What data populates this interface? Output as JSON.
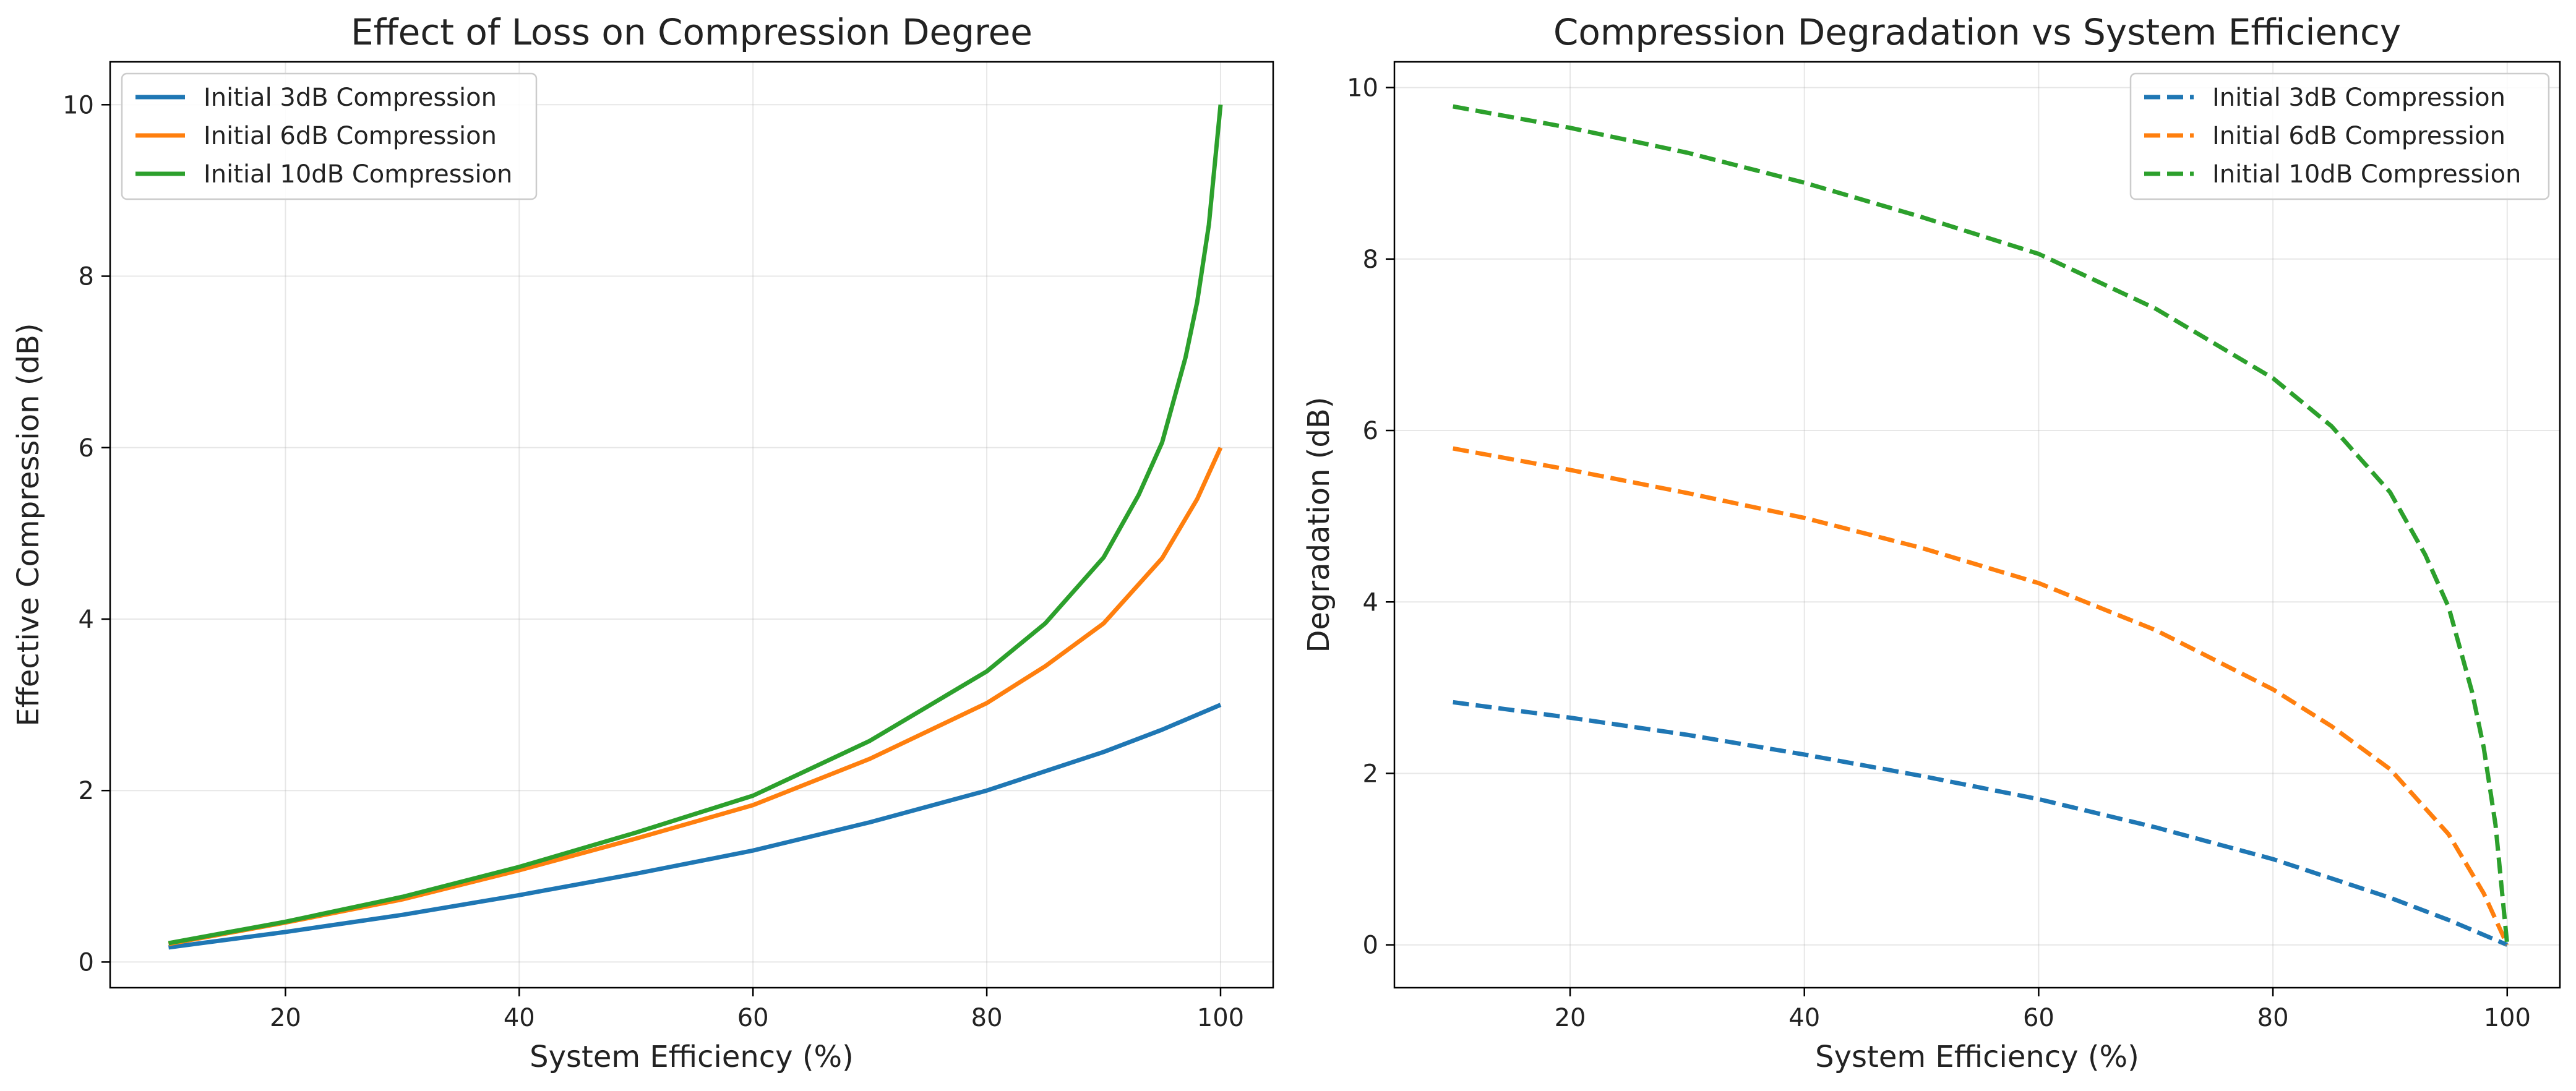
{
  "colors": {
    "series_3db": "#1f77b4",
    "series_6db": "#ff7f0e",
    "series_10db": "#2ca02c"
  },
  "chart_data": [
    {
      "type": "line",
      "title": "Effect of Loss on Compression Degree",
      "xlabel": "System Efficiency (%)",
      "ylabel": "Effective Compression (dB)",
      "xlim": [
        5,
        104.5
      ],
      "ylim": [
        -0.3,
        10.5
      ],
      "xticks": [
        20,
        40,
        60,
        80,
        100
      ],
      "yticks": [
        0,
        2,
        4,
        6,
        8,
        10
      ],
      "grid": true,
      "legend_position": "upper-left",
      "line_style": "solid",
      "series": [
        {
          "name": "Initial 3dB Compression",
          "color_key": "series_3db",
          "x": [
            10,
            20,
            30,
            40,
            50,
            60,
            70,
            80,
            90,
            95,
            100
          ],
          "y": [
            0.17,
            0.35,
            0.55,
            0.78,
            1.03,
            1.3,
            1.63,
            2.0,
            2.45,
            2.71,
            3.0
          ]
        },
        {
          "name": "Initial 6dB Compression",
          "color_key": "series_6db",
          "x": [
            10,
            20,
            30,
            40,
            50,
            60,
            70,
            80,
            85,
            90,
            95,
            98,
            100
          ],
          "y": [
            0.21,
            0.46,
            0.73,
            1.07,
            1.44,
            1.83,
            2.37,
            3.02,
            3.45,
            3.95,
            4.71,
            5.4,
            6.0
          ]
        },
        {
          "name": "Initial 10dB Compression",
          "color_key": "series_10db",
          "x": [
            10,
            20,
            30,
            40,
            50,
            60,
            70,
            80,
            85,
            90,
            93,
            95,
            97,
            98,
            99,
            100
          ],
          "y": [
            0.22,
            0.47,
            0.76,
            1.11,
            1.51,
            1.94,
            2.58,
            3.39,
            3.95,
            4.72,
            5.45,
            6.06,
            7.05,
            7.7,
            8.6,
            10.0
          ]
        }
      ]
    },
    {
      "type": "line",
      "title": "Compression Degradation vs System Efficiency",
      "xlabel": "System Efficiency (%)",
      "ylabel": "Degradation (dB)",
      "xlim": [
        5,
        104.5
      ],
      "ylim": [
        -0.5,
        10.3
      ],
      "xticks": [
        20,
        40,
        60,
        80,
        100
      ],
      "yticks": [
        0,
        2,
        4,
        6,
        8,
        10
      ],
      "grid": true,
      "legend_position": "upper-right",
      "line_style": "dashed",
      "series": [
        {
          "name": "Initial 3dB Compression",
          "color_key": "series_3db",
          "x": [
            10,
            20,
            30,
            40,
            50,
            60,
            70,
            80,
            90,
            95,
            100
          ],
          "y": [
            2.83,
            2.65,
            2.45,
            2.22,
            1.97,
            1.7,
            1.37,
            1.0,
            0.55,
            0.29,
            0.0
          ]
        },
        {
          "name": "Initial 6dB Compression",
          "color_key": "series_6db",
          "x": [
            10,
            20,
            30,
            40,
            50,
            60,
            70,
            80,
            85,
            90,
            95,
            98,
            100
          ],
          "y": [
            5.79,
            5.54,
            5.27,
            4.98,
            4.63,
            4.22,
            3.67,
            2.98,
            2.55,
            2.05,
            1.29,
            0.6,
            0.0
          ]
        },
        {
          "name": "Initial 10dB Compression",
          "color_key": "series_10db",
          "x": [
            10,
            20,
            30,
            40,
            50,
            60,
            70,
            80,
            85,
            90,
            93,
            95,
            97,
            98,
            99,
            100
          ],
          "y": [
            9.78,
            9.53,
            9.24,
            8.89,
            8.49,
            8.06,
            7.42,
            6.61,
            6.05,
            5.28,
            4.55,
            3.94,
            2.95,
            2.3,
            1.4,
            0.0
          ]
        }
      ]
    }
  ]
}
